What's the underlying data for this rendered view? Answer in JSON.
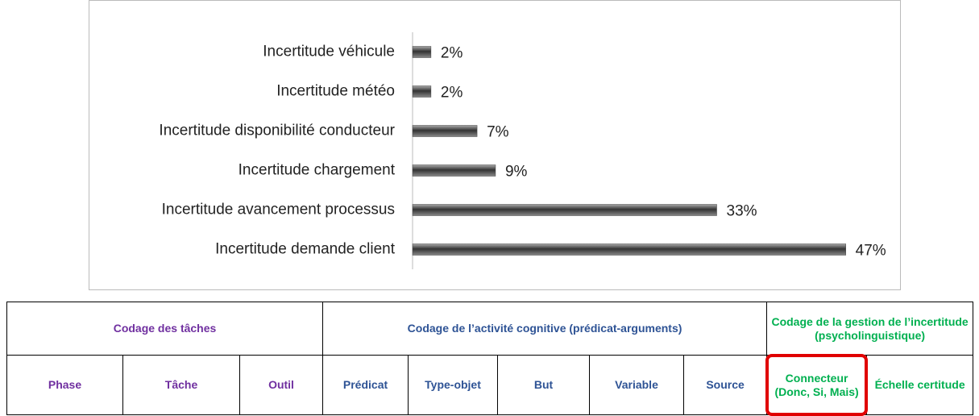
{
  "chart_data": {
    "type": "bar",
    "orientation": "horizontal",
    "categories": [
      "Incertitude véhicule",
      "Incertitude météo",
      "Incertitude disponibilité conducteur",
      "Incertitude chargement",
      "Incertitude avancement processus",
      "Incertitude demande client"
    ],
    "values": [
      2,
      2,
      7,
      9,
      33,
      47
    ],
    "value_labels": [
      "2%",
      "2%",
      "7%",
      "9%",
      "33%",
      "47%"
    ],
    "color": "#444444",
    "xlim": [
      0,
      50
    ],
    "grid": false
  },
  "table": {
    "groups": [
      "Codage des tâches",
      "Codage de l’activité cognitive (prédicat-arguments)",
      "Codage de la gestion de l’incertitude (psycholinguistique)"
    ],
    "columns": [
      "Phase",
      "Tâche",
      "Outil",
      "Prédicat",
      "Type-objet",
      "But",
      "Variable",
      "Source",
      "Connecteur (Donc, Si, Mais)",
      "Échelle certitude"
    ]
  }
}
